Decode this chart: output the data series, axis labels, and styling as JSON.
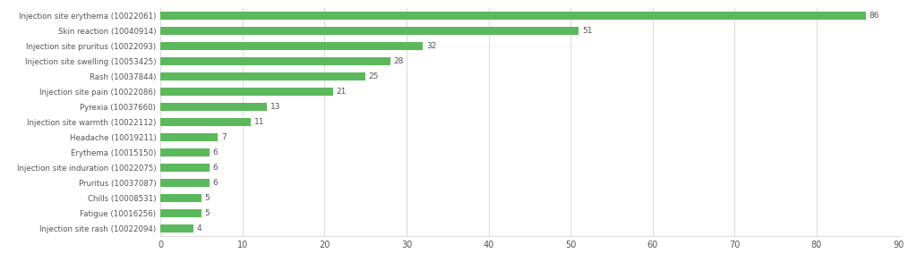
{
  "categories": [
    "Injection site erythema (10022061)",
    "Skin reaction (10040914)",
    "Injection site pruritus (10022093)",
    "Injection site swelling (10053425)",
    "Rash (10037844)",
    "Injection site pain (10022086)",
    "Pyrexia (10037660)",
    "Injection site warmth (10022112)",
    "Headache (10019211)",
    "Erythema (10015150)",
    "Injection site induration (10022075)",
    "Pruritus (10037087)",
    "Chills (10008531)",
    "Fatigue (10016256)",
    "Injection site rash (10022094)"
  ],
  "values": [
    86,
    51,
    32,
    28,
    25,
    21,
    13,
    11,
    7,
    6,
    6,
    6,
    5,
    5,
    4
  ],
  "bar_color": "#5cb85c",
  "value_label_color": "#555555",
  "background_color": "#ffffff",
  "grid_color": "#dddddd",
  "xlim": [
    0,
    90
  ],
  "xticks": [
    0,
    10,
    20,
    30,
    40,
    50,
    60,
    70,
    80,
    90
  ],
  "bar_height": 0.55,
  "label_fontsize": 6.2,
  "tick_fontsize": 7,
  "value_fontsize": 6.5
}
